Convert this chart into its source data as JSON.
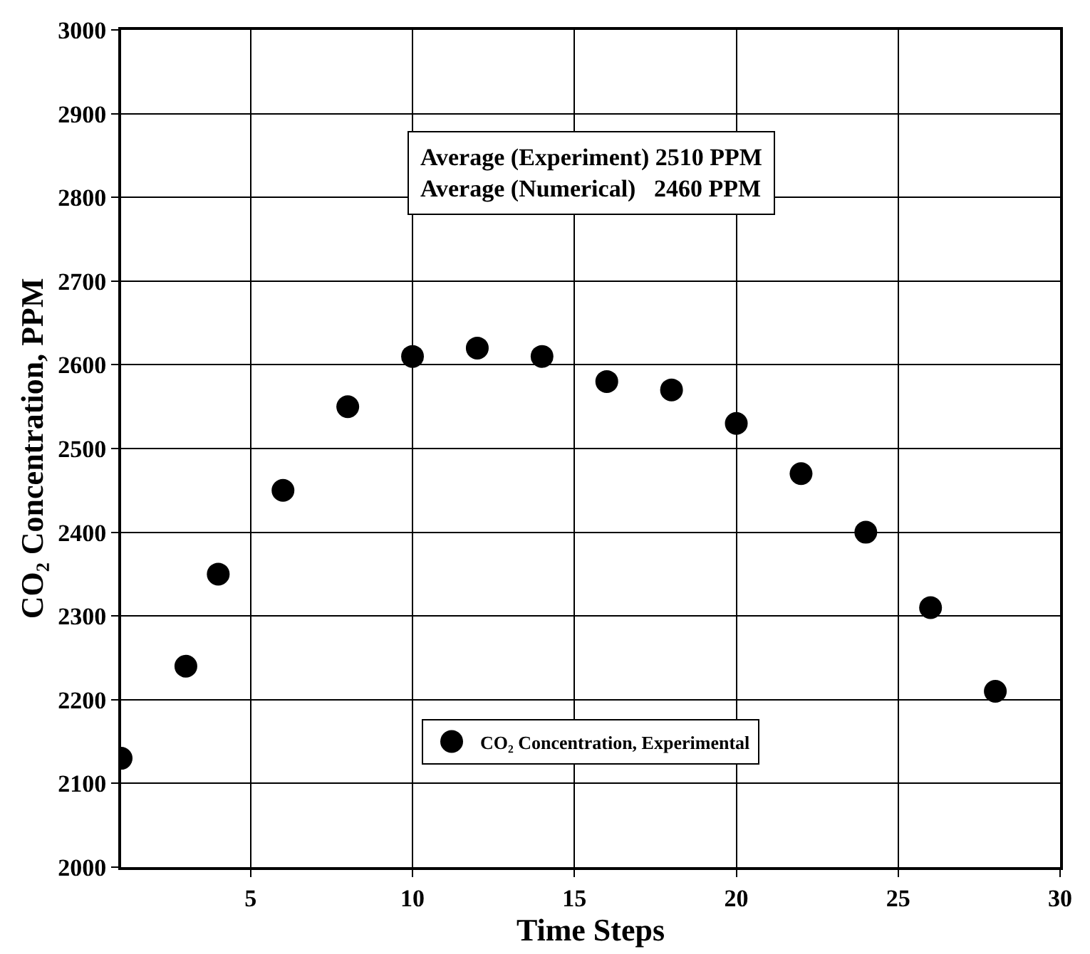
{
  "chart_data": {
    "type": "scatter",
    "xlabel": "Time Steps",
    "ylabel": "CO₂ Concentration, PPM",
    "x": [
      1,
      3,
      4,
      6,
      8,
      10,
      12,
      14,
      16,
      18,
      20,
      22,
      24,
      26,
      28
    ],
    "series": [
      {
        "name": "CO₂ Concentration, Experimental",
        "color": "#000000",
        "values": [
          2130,
          2240,
          2350,
          2450,
          2550,
          2610,
          2620,
          2610,
          2580,
          2570,
          2530,
          2470,
          2400,
          2310,
          2210
        ]
      }
    ],
    "xlim": [
      1,
      30
    ],
    "xticks": [
      5,
      10,
      15,
      20,
      25,
      30
    ],
    "ylim": [
      2000,
      3000
    ],
    "yticks": [
      2000,
      2100,
      2200,
      2300,
      2400,
      2500,
      2600,
      2700,
      2800,
      2900,
      3000
    ],
    "annotations": [
      "Average (Experiment) 2510 PPM",
      "Average (Numerical)   2460 PPM"
    ],
    "grid": true,
    "legend": "bottom",
    "marker": "circle"
  }
}
